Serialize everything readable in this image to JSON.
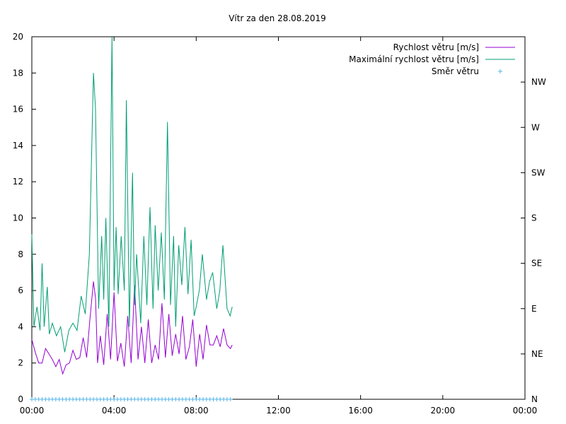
{
  "chart_data": {
    "type": "line",
    "title": "Vítr za den 28.08.2019",
    "xlabel": "",
    "ylabel": "",
    "x_unit": "hours",
    "xlim": [
      0,
      24
    ],
    "ylim": [
      0,
      20
    ],
    "y2lim": [
      0,
      8
    ],
    "x_tick_values": [
      0,
      4,
      8,
      12,
      16,
      20,
      24
    ],
    "x_tick_labels": [
      "00:00",
      "04:00",
      "08:00",
      "12:00",
      "16:00",
      "20:00",
      "00:00"
    ],
    "y_tick_values": [
      0,
      2,
      4,
      6,
      8,
      10,
      12,
      14,
      16,
      18,
      20
    ],
    "y_tick_labels": [
      "0",
      "2",
      "4",
      "6",
      "8",
      "10",
      "12",
      "14",
      "16",
      "18",
      "20"
    ],
    "y2_tick_values": [
      0,
      1,
      2,
      3,
      4,
      5,
      6,
      7
    ],
    "y2_tick_labels": [
      "N",
      "NE",
      "E",
      "SE",
      "S",
      "SW",
      "W",
      "NW"
    ],
    "grid": false,
    "legend_position": "top-right",
    "series": [
      {
        "name": "Rychlost větru [m/s]",
        "color": "#9400d3",
        "axis": "y",
        "style": "line",
        "x": [
          0.0,
          0.167,
          0.333,
          0.5,
          0.667,
          0.833,
          1.0,
          1.167,
          1.333,
          1.5,
          1.667,
          1.833,
          2.0,
          2.167,
          2.333,
          2.5,
          2.667,
          2.833,
          3.0,
          3.1,
          3.2,
          3.333,
          3.5,
          3.667,
          3.833,
          4.0,
          4.167,
          4.333,
          4.5,
          4.667,
          4.833,
          5.0,
          5.167,
          5.333,
          5.5,
          5.667,
          5.833,
          6.0,
          6.167,
          6.333,
          6.5,
          6.667,
          6.833,
          7.0,
          7.167,
          7.333,
          7.5,
          7.667,
          7.833,
          8.0,
          8.167,
          8.333,
          8.5,
          8.667,
          8.833,
          9.0,
          9.167,
          9.333,
          9.5,
          9.667,
          9.75
        ],
        "values": [
          3.3,
          2.6,
          2.0,
          2.0,
          2.8,
          2.5,
          2.2,
          1.8,
          2.2,
          1.4,
          1.9,
          2.0,
          2.7,
          2.2,
          2.3,
          3.4,
          2.3,
          4.5,
          6.5,
          5.6,
          2.0,
          3.5,
          1.9,
          4.7,
          2.2,
          5.9,
          2.1,
          3.1,
          1.8,
          4.6,
          2.0,
          6.3,
          2.2,
          4.0,
          2.0,
          4.4,
          2.0,
          3.0,
          2.2,
          5.3,
          2.3,
          4.7,
          2.4,
          3.6,
          2.5,
          4.6,
          2.2,
          2.9,
          4.4,
          1.8,
          3.6,
          2.2,
          4.1,
          3.0,
          3.0,
          3.5,
          2.9,
          3.9,
          3.0,
          2.8,
          3.0
        ]
      },
      {
        "name": "Maximální rychlost větru [m/s]",
        "color": "#009e73",
        "axis": "y",
        "style": "line",
        "x": [
          0.0,
          0.1,
          0.25,
          0.4,
          0.5,
          0.6,
          0.75,
          0.85,
          1.0,
          1.2,
          1.4,
          1.6,
          1.8,
          2.0,
          2.2,
          2.4,
          2.6,
          2.8,
          3.0,
          3.1,
          3.25,
          3.4,
          3.5,
          3.6,
          3.75,
          3.9,
          4.0,
          4.1,
          4.2,
          4.35,
          4.5,
          4.6,
          4.75,
          4.9,
          5.0,
          5.1,
          5.3,
          5.45,
          5.6,
          5.75,
          5.9,
          6.0,
          6.15,
          6.3,
          6.45,
          6.6,
          6.75,
          6.9,
          7.0,
          7.15,
          7.3,
          7.45,
          7.6,
          7.75,
          7.9,
          8.0,
          8.15,
          8.3,
          8.5,
          8.65,
          8.8,
          9.0,
          9.15,
          9.3,
          9.5,
          9.65,
          9.75
        ],
        "values": [
          9.1,
          4.0,
          5.1,
          3.8,
          7.5,
          4.0,
          6.2,
          3.6,
          4.2,
          3.5,
          4.0,
          2.6,
          3.8,
          4.2,
          3.8,
          5.7,
          4.7,
          8.0,
          18.0,
          16.0,
          5.0,
          9.0,
          5.5,
          10.0,
          4.0,
          20.0,
          6.0,
          9.5,
          5.8,
          9.0,
          6.0,
          16.5,
          4.0,
          12.5,
          5.2,
          8.0,
          4.2,
          9.0,
          5.2,
          10.6,
          5.0,
          9.6,
          6.0,
          9.2,
          5.5,
          15.3,
          5.2,
          9.0,
          4.0,
          8.5,
          6.3,
          9.5,
          5.8,
          8.8,
          4.6,
          5.1,
          6.0,
          8.0,
          5.5,
          6.5,
          7.0,
          5.0,
          6.0,
          8.5,
          5.0,
          4.6,
          5.1
        ]
      },
      {
        "name": "Směr větru",
        "color": "#56b4e9",
        "axis": "y2",
        "style": "points",
        "x": [
          0.0,
          0.167,
          0.333,
          0.5,
          0.667,
          0.833,
          1.0,
          1.167,
          1.333,
          1.5,
          1.667,
          1.833,
          2.0,
          2.167,
          2.333,
          2.5,
          2.667,
          2.833,
          3.0,
          3.167,
          3.333,
          3.5,
          3.667,
          3.833,
          4.0,
          4.167,
          4.333,
          4.5,
          4.667,
          4.833,
          5.0,
          5.167,
          5.333,
          5.5,
          5.667,
          5.833,
          6.0,
          6.167,
          6.333,
          6.5,
          6.667,
          6.833,
          7.0,
          7.167,
          7.333,
          7.5,
          7.667,
          7.833,
          8.0,
          8.167,
          8.333,
          8.5,
          8.667,
          8.833,
          9.0,
          9.167,
          9.333,
          9.5,
          9.667
        ],
        "values": [
          0,
          0,
          0,
          0,
          0,
          0,
          0,
          0,
          0,
          0,
          0,
          0,
          0,
          0,
          0,
          0,
          0,
          0,
          0,
          0,
          0,
          0,
          0,
          0,
          0,
          0,
          0,
          0,
          0,
          0,
          0,
          0,
          0,
          0,
          0,
          0,
          0,
          0,
          0,
          0,
          0,
          0,
          0,
          0,
          0,
          0,
          0,
          0,
          0,
          0,
          0,
          0,
          0,
          0,
          0,
          0,
          0,
          0,
          0
        ]
      }
    ]
  }
}
